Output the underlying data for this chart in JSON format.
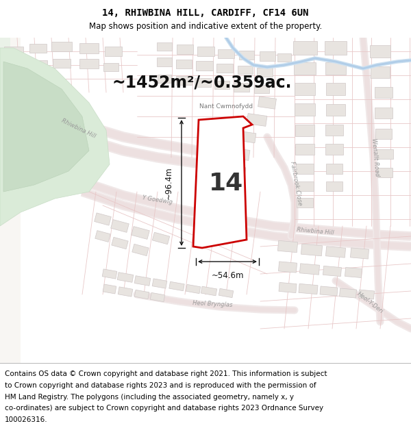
{
  "title_line1": "14, RHIWBINA HILL, CARDIFF, CF14 6UN",
  "title_line2": "Map shows position and indicative extent of the property.",
  "area_text": "~1452m²/~0.359ac.",
  "dim_width": "~54.6m",
  "dim_height": "~96.4m",
  "label_place": "Nant Cwmnofydd",
  "plot_label": "14",
  "footer_lines": [
    "Contains OS data © Crown copyright and database right 2021. This information is subject",
    "to Crown copyright and database rights 2023 and is reproduced with the permission of",
    "HM Land Registry. The polygons (including the associated geometry, namely x, y",
    "co-ordinates) are subject to Crown copyright and database rights 2023 Ordnance Survey",
    "100026316."
  ],
  "map_bg": "#f8f6f3",
  "road_outline_color": "#e8c8c8",
  "road_fill_color": "#f5f0f0",
  "building_fill": "#e8e4e0",
  "building_edge": "#d0c8c8",
  "plot_fill": "#ffffff",
  "plot_edge": "#cc0000",
  "green_fill": "#d8eadc",
  "green2_fill": "#e8f0ea",
  "stream_color": "#b8d4e8",
  "dim_color": "#111111",
  "text_color": "#555555",
  "title_fontsize": 10,
  "subtitle_fontsize": 8.5,
  "area_fontsize": 17,
  "footer_fontsize": 7.5,
  "label_fontsize": 6.5,
  "road_label_fontsize": 6
}
